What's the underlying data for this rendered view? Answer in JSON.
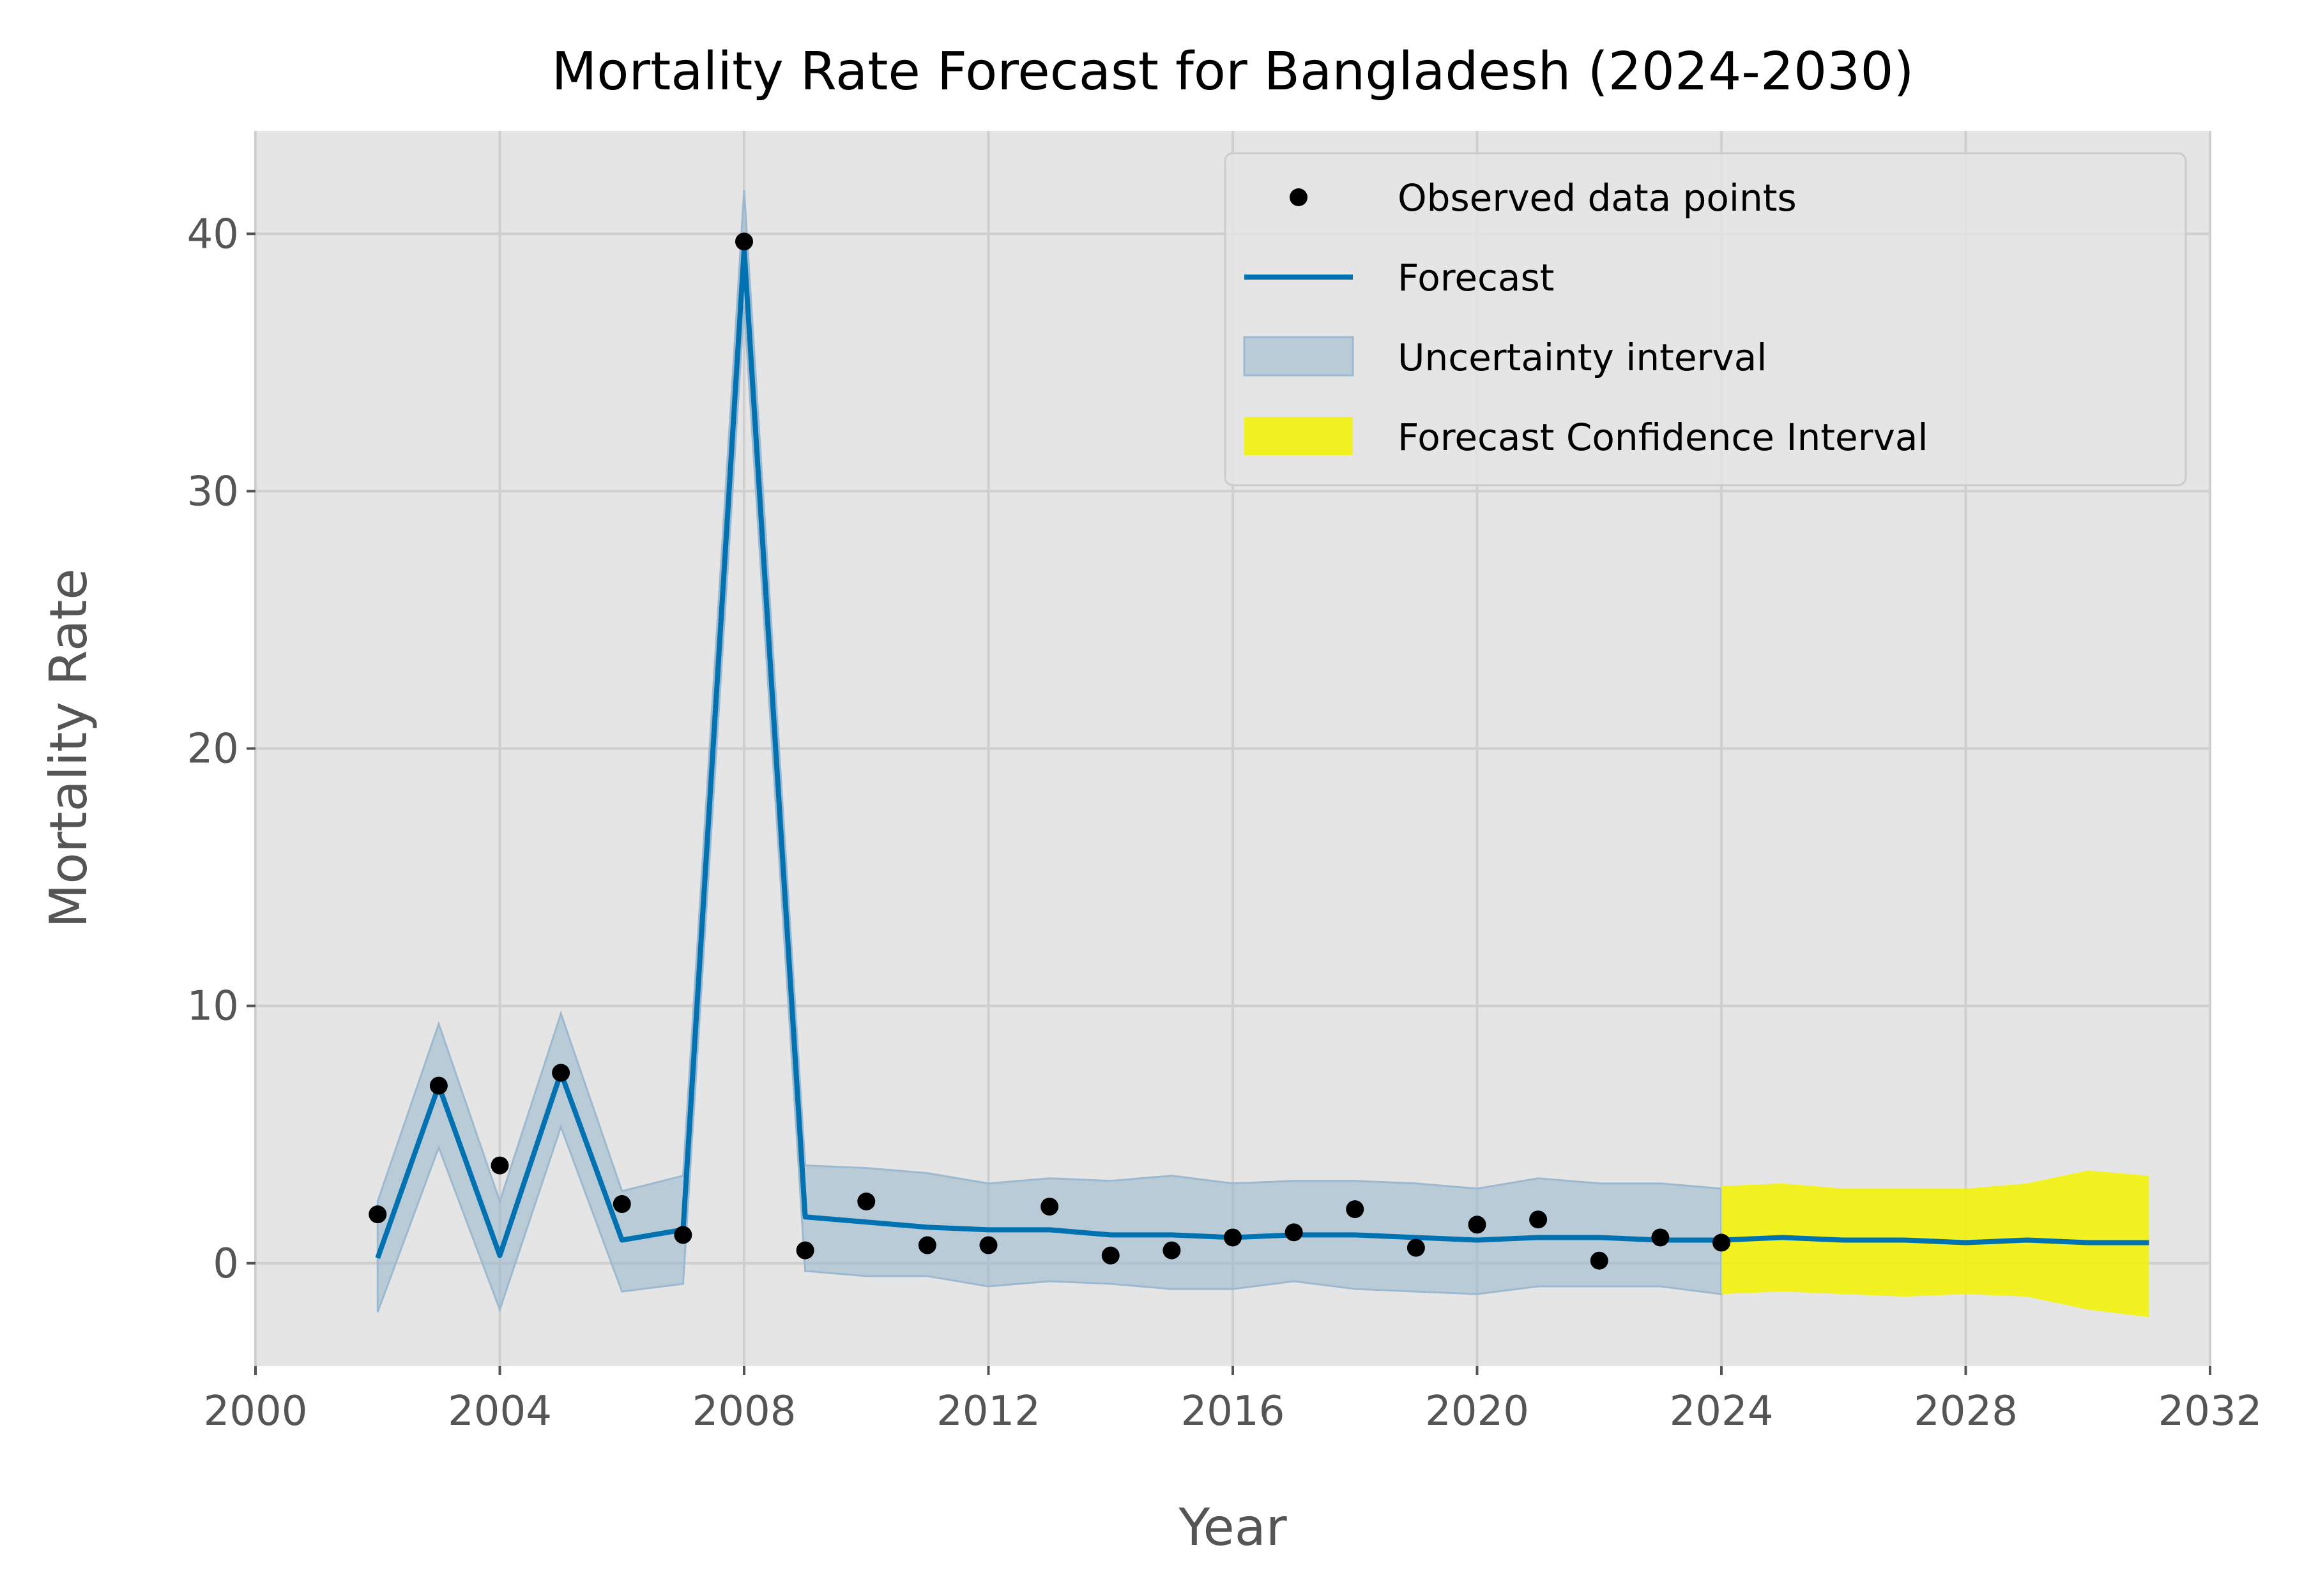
{
  "chart_data": {
    "type": "line",
    "title": "Mortality Rate Forecast for Bangladesh (2024-2030)",
    "xlabel": "Year",
    "ylabel": "Mortality Rate",
    "xlim": [
      2000,
      2032
    ],
    "ylim": [
      -4,
      44
    ],
    "x_ticks": [
      2000,
      2004,
      2008,
      2012,
      2016,
      2020,
      2024,
      2028,
      2032
    ],
    "y_ticks": [
      0,
      10,
      20,
      30,
      40
    ],
    "grid": true,
    "legend_position": "top-right",
    "series": [
      {
        "name": "Observed data points",
        "kind": "scatter",
        "color": "#000000",
        "x": [
          2002,
          2003,
          2004,
          2005,
          2006,
          2007,
          2008,
          2009,
          2010,
          2011,
          2012,
          2013,
          2014,
          2015,
          2016,
          2017,
          2018,
          2019,
          2020,
          2021,
          2022,
          2023,
          2024
        ],
        "y": [
          1.9,
          6.9,
          3.8,
          7.4,
          2.3,
          1.1,
          39.7,
          0.5,
          2.4,
          0.7,
          0.7,
          2.2,
          0.3,
          0.5,
          1.0,
          1.2,
          2.1,
          0.6,
          1.5,
          1.7,
          0.1,
          1.0,
          0.8
        ]
      },
      {
        "name": "Forecast",
        "kind": "line",
        "color": "#0072B2",
        "x": [
          2002,
          2003,
          2004,
          2005,
          2006,
          2007,
          2008,
          2009,
          2010,
          2011,
          2012,
          2013,
          2014,
          2015,
          2016,
          2017,
          2018,
          2019,
          2020,
          2021,
          2022,
          2023,
          2024,
          2025,
          2026,
          2027,
          2028,
          2029,
          2030,
          2031
        ],
        "y": [
          0.2,
          6.9,
          0.3,
          7.4,
          0.9,
          1.3,
          39.4,
          1.8,
          1.6,
          1.4,
          1.3,
          1.3,
          1.1,
          1.1,
          1.0,
          1.1,
          1.1,
          1.0,
          0.9,
          1.0,
          1.0,
          0.9,
          0.9,
          1.0,
          0.9,
          0.9,
          0.8,
          0.9,
          0.8,
          0.8
        ]
      },
      {
        "name": "Uncertainty interval",
        "kind": "band",
        "color": "#9DB9CF",
        "x": [
          2002,
          2003,
          2004,
          2005,
          2006,
          2007,
          2008,
          2009,
          2010,
          2011,
          2012,
          2013,
          2014,
          2015,
          2016,
          2017,
          2018,
          2019,
          2020,
          2021,
          2022,
          2023,
          2024
        ],
        "lower": [
          -1.9,
          4.5,
          -1.8,
          5.3,
          -1.1,
          -0.8,
          37.2,
          -0.3,
          -0.5,
          -0.5,
          -0.9,
          -0.7,
          -0.8,
          -1.0,
          -1.0,
          -0.7,
          -1.0,
          -1.1,
          -1.2,
          -0.9,
          -0.9,
          -0.9,
          -1.2
        ],
        "upper": [
          2.4,
          9.3,
          2.4,
          9.7,
          2.8,
          3.4,
          41.7,
          3.8,
          3.7,
          3.5,
          3.1,
          3.3,
          3.2,
          3.4,
          3.1,
          3.2,
          3.2,
          3.1,
          2.9,
          3.3,
          3.1,
          3.1,
          2.9
        ]
      },
      {
        "name": "Forecast Confidence Interval",
        "kind": "band",
        "color": "#F5F500",
        "x": [
          2024,
          2025,
          2026,
          2027,
          2028,
          2029,
          2030,
          2031
        ],
        "lower": [
          -1.2,
          -1.1,
          -1.2,
          -1.3,
          -1.2,
          -1.3,
          -1.8,
          -2.1
        ],
        "upper": [
          3.0,
          3.1,
          2.9,
          2.9,
          2.9,
          3.1,
          3.6,
          3.4
        ]
      }
    ]
  }
}
